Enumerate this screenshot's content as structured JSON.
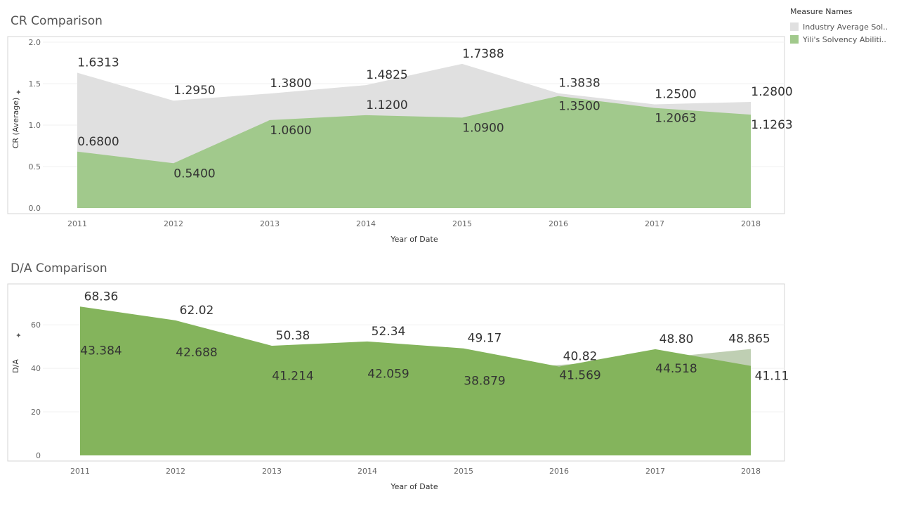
{
  "legend": {
    "title": "Measure Names",
    "items": [
      {
        "label": "Industry Average Sol..",
        "color": "#e0e0e0"
      },
      {
        "label": "Yili's Solvency Abiliti..",
        "color": "#a1c98c"
      }
    ]
  },
  "chart_data": [
    {
      "type": "area",
      "title": "CR Comparison",
      "xlabel": "Year of Date",
      "ylabel": "CR (Average)",
      "x": [
        "2011",
        "2012",
        "2013",
        "2014",
        "2015",
        "2016",
        "2017",
        "2018"
      ],
      "ylim": [
        0,
        2.0
      ],
      "yticks": [
        "0.0",
        "0.5",
        "1.0",
        "1.5",
        "2.0"
      ],
      "ytick_values": [
        0,
        0.5,
        1.0,
        1.5,
        2.0
      ],
      "grid": true,
      "series": [
        {
          "name": "Industry Average Sol..",
          "color": "#e0e0e0",
          "values": [
            1.6313,
            1.295,
            1.38,
            1.4825,
            1.7388,
            1.3838,
            1.25,
            1.28
          ],
          "labels": [
            "1.6313",
            "1.2950",
            "1.3800",
            "1.4825",
            "1.7388",
            "1.3838",
            "1.2500",
            "1.2800"
          ]
        },
        {
          "name": "Yili's Solvency Abiliti..",
          "color": "#a1c98c",
          "values": [
            0.68,
            0.54,
            1.06,
            1.12,
            1.09,
            1.35,
            1.2063,
            1.1263
          ],
          "labels": [
            "0.6800",
            "0.5400",
            "1.0600",
            "1.1200",
            "1.0900",
            "1.3500",
            "1.2063",
            "1.1263"
          ]
        }
      ]
    },
    {
      "type": "area",
      "title": "D/A Comparison",
      "xlabel": "Year of Date",
      "ylabel": "D/A",
      "x": [
        "2011",
        "2012",
        "2013",
        "2014",
        "2015",
        "2016",
        "2017",
        "2018"
      ],
      "ylim": [
        0,
        72
      ],
      "yticks": [
        "0",
        "20",
        "40",
        "60"
      ],
      "ytick_values": [
        0,
        20,
        40,
        60
      ],
      "grid": true,
      "series": [
        {
          "name": "Industry Average Sol..",
          "color": "#bfcfb3",
          "values": [
            43.384,
            42.688,
            41.214,
            42.059,
            38.879,
            41.569,
            44.518,
            48.865
          ],
          "labels": [
            "43.384",
            "42.688",
            "41.214",
            "42.059",
            "38.879",
            "41.569",
            "44.518",
            "48.865"
          ]
        },
        {
          "name": "Yili's Solvency Abiliti..",
          "color": "#84b45c",
          "values": [
            68.36,
            62.02,
            50.38,
            52.34,
            49.17,
            40.82,
            48.8,
            41.11
          ],
          "labels": [
            "68.36",
            "62.02",
            "50.38",
            "52.34",
            "49.17",
            "40.82",
            "48.80",
            "41.11"
          ]
        }
      ]
    }
  ]
}
